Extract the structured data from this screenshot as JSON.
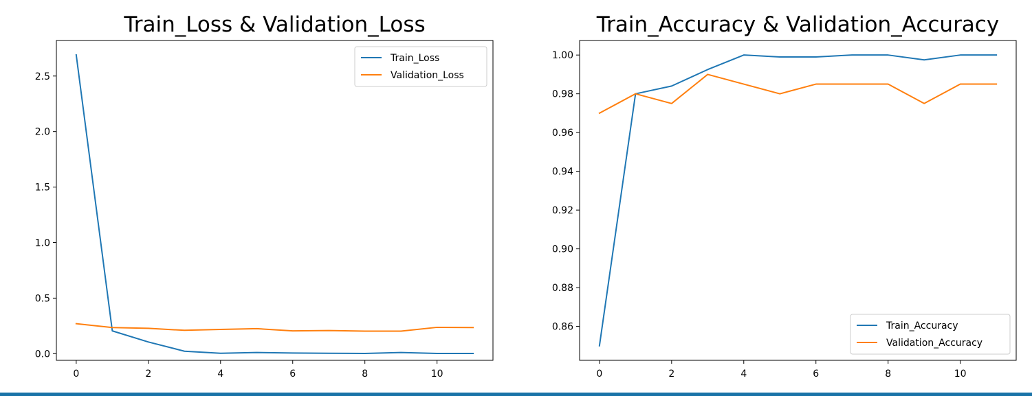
{
  "colors": {
    "train": "#1f77b4",
    "validation": "#ff7f0e",
    "axis": "#000000",
    "bottom_band": "#1a73a8"
  },
  "chart_data": [
    {
      "type": "line",
      "title": "Train_Loss & Validation_Loss",
      "xlabel": "",
      "ylabel": "",
      "x": [
        0,
        1,
        2,
        3,
        4,
        5,
        6,
        7,
        8,
        9,
        10,
        11
      ],
      "xlim": [
        -0.55,
        11.55
      ],
      "ylim": [
        -0.06,
        2.82
      ],
      "xticks": [
        0,
        2,
        4,
        6,
        8,
        10
      ],
      "xtick_labels": [
        "0",
        "2",
        "4",
        "6",
        "8",
        "10"
      ],
      "yticks": [
        0.0,
        0.5,
        1.0,
        1.5,
        2.0,
        2.5
      ],
      "ytick_labels": [
        "0.0",
        "0.5",
        "1.0",
        "1.5",
        "2.0",
        "2.5"
      ],
      "grid": false,
      "legend_position": "top-right",
      "series": [
        {
          "name": "Train_Loss",
          "color": "#1f77b4",
          "values": [
            2.69,
            0.205,
            0.105,
            0.022,
            0.003,
            0.01,
            0.006,
            0.003,
            0.002,
            0.01,
            0.002,
            0.002
          ]
        },
        {
          "name": "Validation_Loss",
          "color": "#ff7f0e",
          "values": [
            0.27,
            0.235,
            0.228,
            0.21,
            0.218,
            0.225,
            0.205,
            0.208,
            0.203,
            0.203,
            0.237,
            0.235
          ]
        }
      ]
    },
    {
      "type": "line",
      "title": "Train_Accuracy & Validation_Accuracy",
      "xlabel": "",
      "ylabel": "",
      "x": [
        0,
        1,
        2,
        3,
        4,
        5,
        6,
        7,
        8,
        9,
        10,
        11
      ],
      "xlim": [
        -0.55,
        11.55
      ],
      "ylim": [
        0.8425,
        1.0075
      ],
      "xticks": [
        0,
        2,
        4,
        6,
        8,
        10
      ],
      "xtick_labels": [
        "0",
        "2",
        "4",
        "6",
        "8",
        "10"
      ],
      "yticks": [
        0.86,
        0.88,
        0.9,
        0.92,
        0.94,
        0.96,
        0.98,
        1.0
      ],
      "ytick_labels": [
        "0.86",
        "0.88",
        "0.90",
        "0.92",
        "0.94",
        "0.96",
        "0.98",
        "1.00"
      ],
      "grid": false,
      "legend_position": "bottom-right",
      "series": [
        {
          "name": "Train_Accuracy",
          "color": "#1f77b4",
          "values": [
            0.85,
            0.98,
            0.984,
            0.9925,
            1.0,
            0.999,
            0.999,
            1.0,
            1.0,
            0.9975,
            1.0,
            1.0
          ]
        },
        {
          "name": "Validation_Accuracy",
          "color": "#ff7f0e",
          "values": [
            0.97,
            0.98,
            0.975,
            0.99,
            0.985,
            0.98,
            0.985,
            0.985,
            0.985,
            0.975,
            0.985,
            0.985
          ]
        }
      ]
    }
  ]
}
